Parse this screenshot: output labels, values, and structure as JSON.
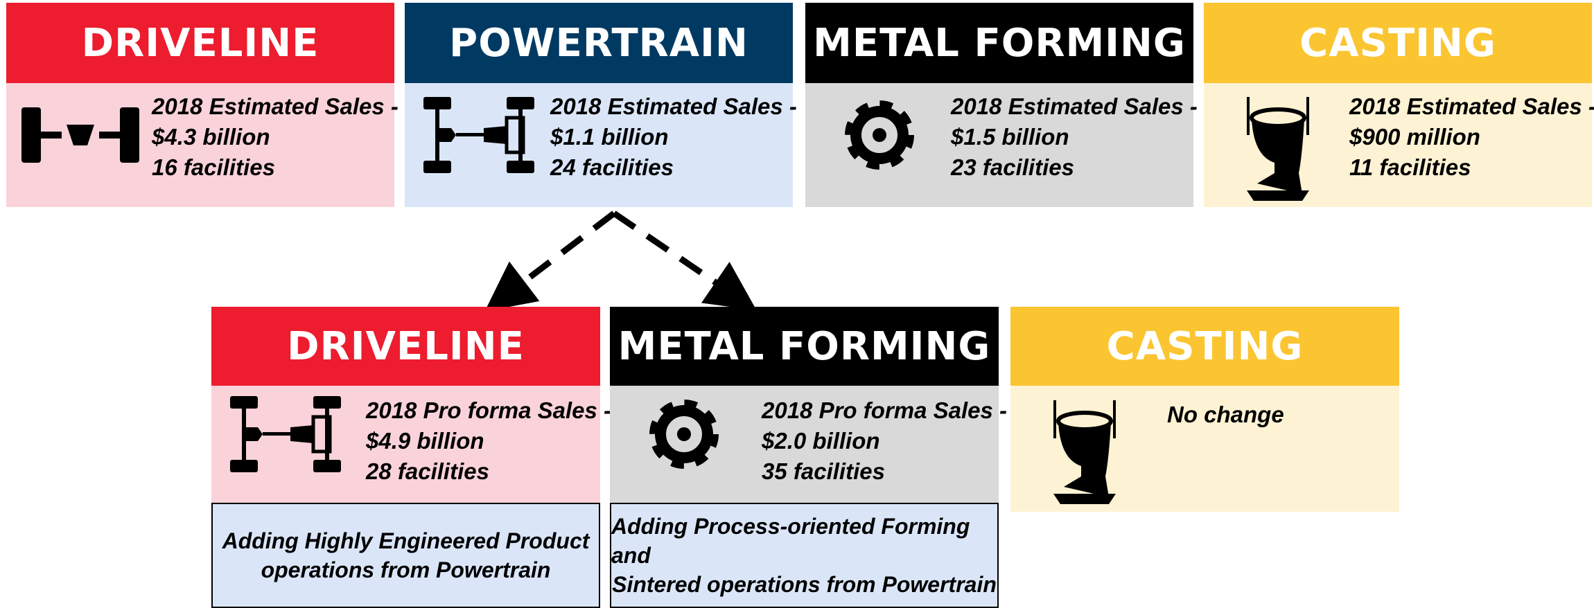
{
  "top": [
    {
      "title": "DRIVELINE",
      "lines": [
        "2018 Estimated Sales -",
        "$4.3 billion",
        "16 facilities"
      ]
    },
    {
      "title": "POWERTRAIN",
      "lines": [
        "2018 Estimated Sales -",
        "$1.1 billion",
        "24 facilities"
      ]
    },
    {
      "title": "METAL FORMING",
      "lines": [
        "2018 Estimated Sales -",
        "$1.5 billion",
        "23 facilities"
      ]
    },
    {
      "title": "CASTING",
      "lines": [
        "2018 Estimated Sales -",
        "$900 million",
        "11 facilities"
      ]
    }
  ],
  "bottom": [
    {
      "title": "DRIVELINE",
      "lines": [
        "2018 Pro forma Sales -",
        "$4.9 billion",
        "28 facilities"
      ],
      "note": [
        "Adding Highly Engineered Product",
        "operations from Powertrain"
      ]
    },
    {
      "title": "METAL FORMING",
      "lines": [
        "2018 Pro forma Sales -",
        "$2.0 billion",
        "35 facilities"
      ],
      "note": [
        "Adding Process-oriented Forming and",
        "Sintered operations from Powertrain"
      ]
    },
    {
      "title": "CASTING",
      "lines": [
        "No change"
      ]
    }
  ]
}
